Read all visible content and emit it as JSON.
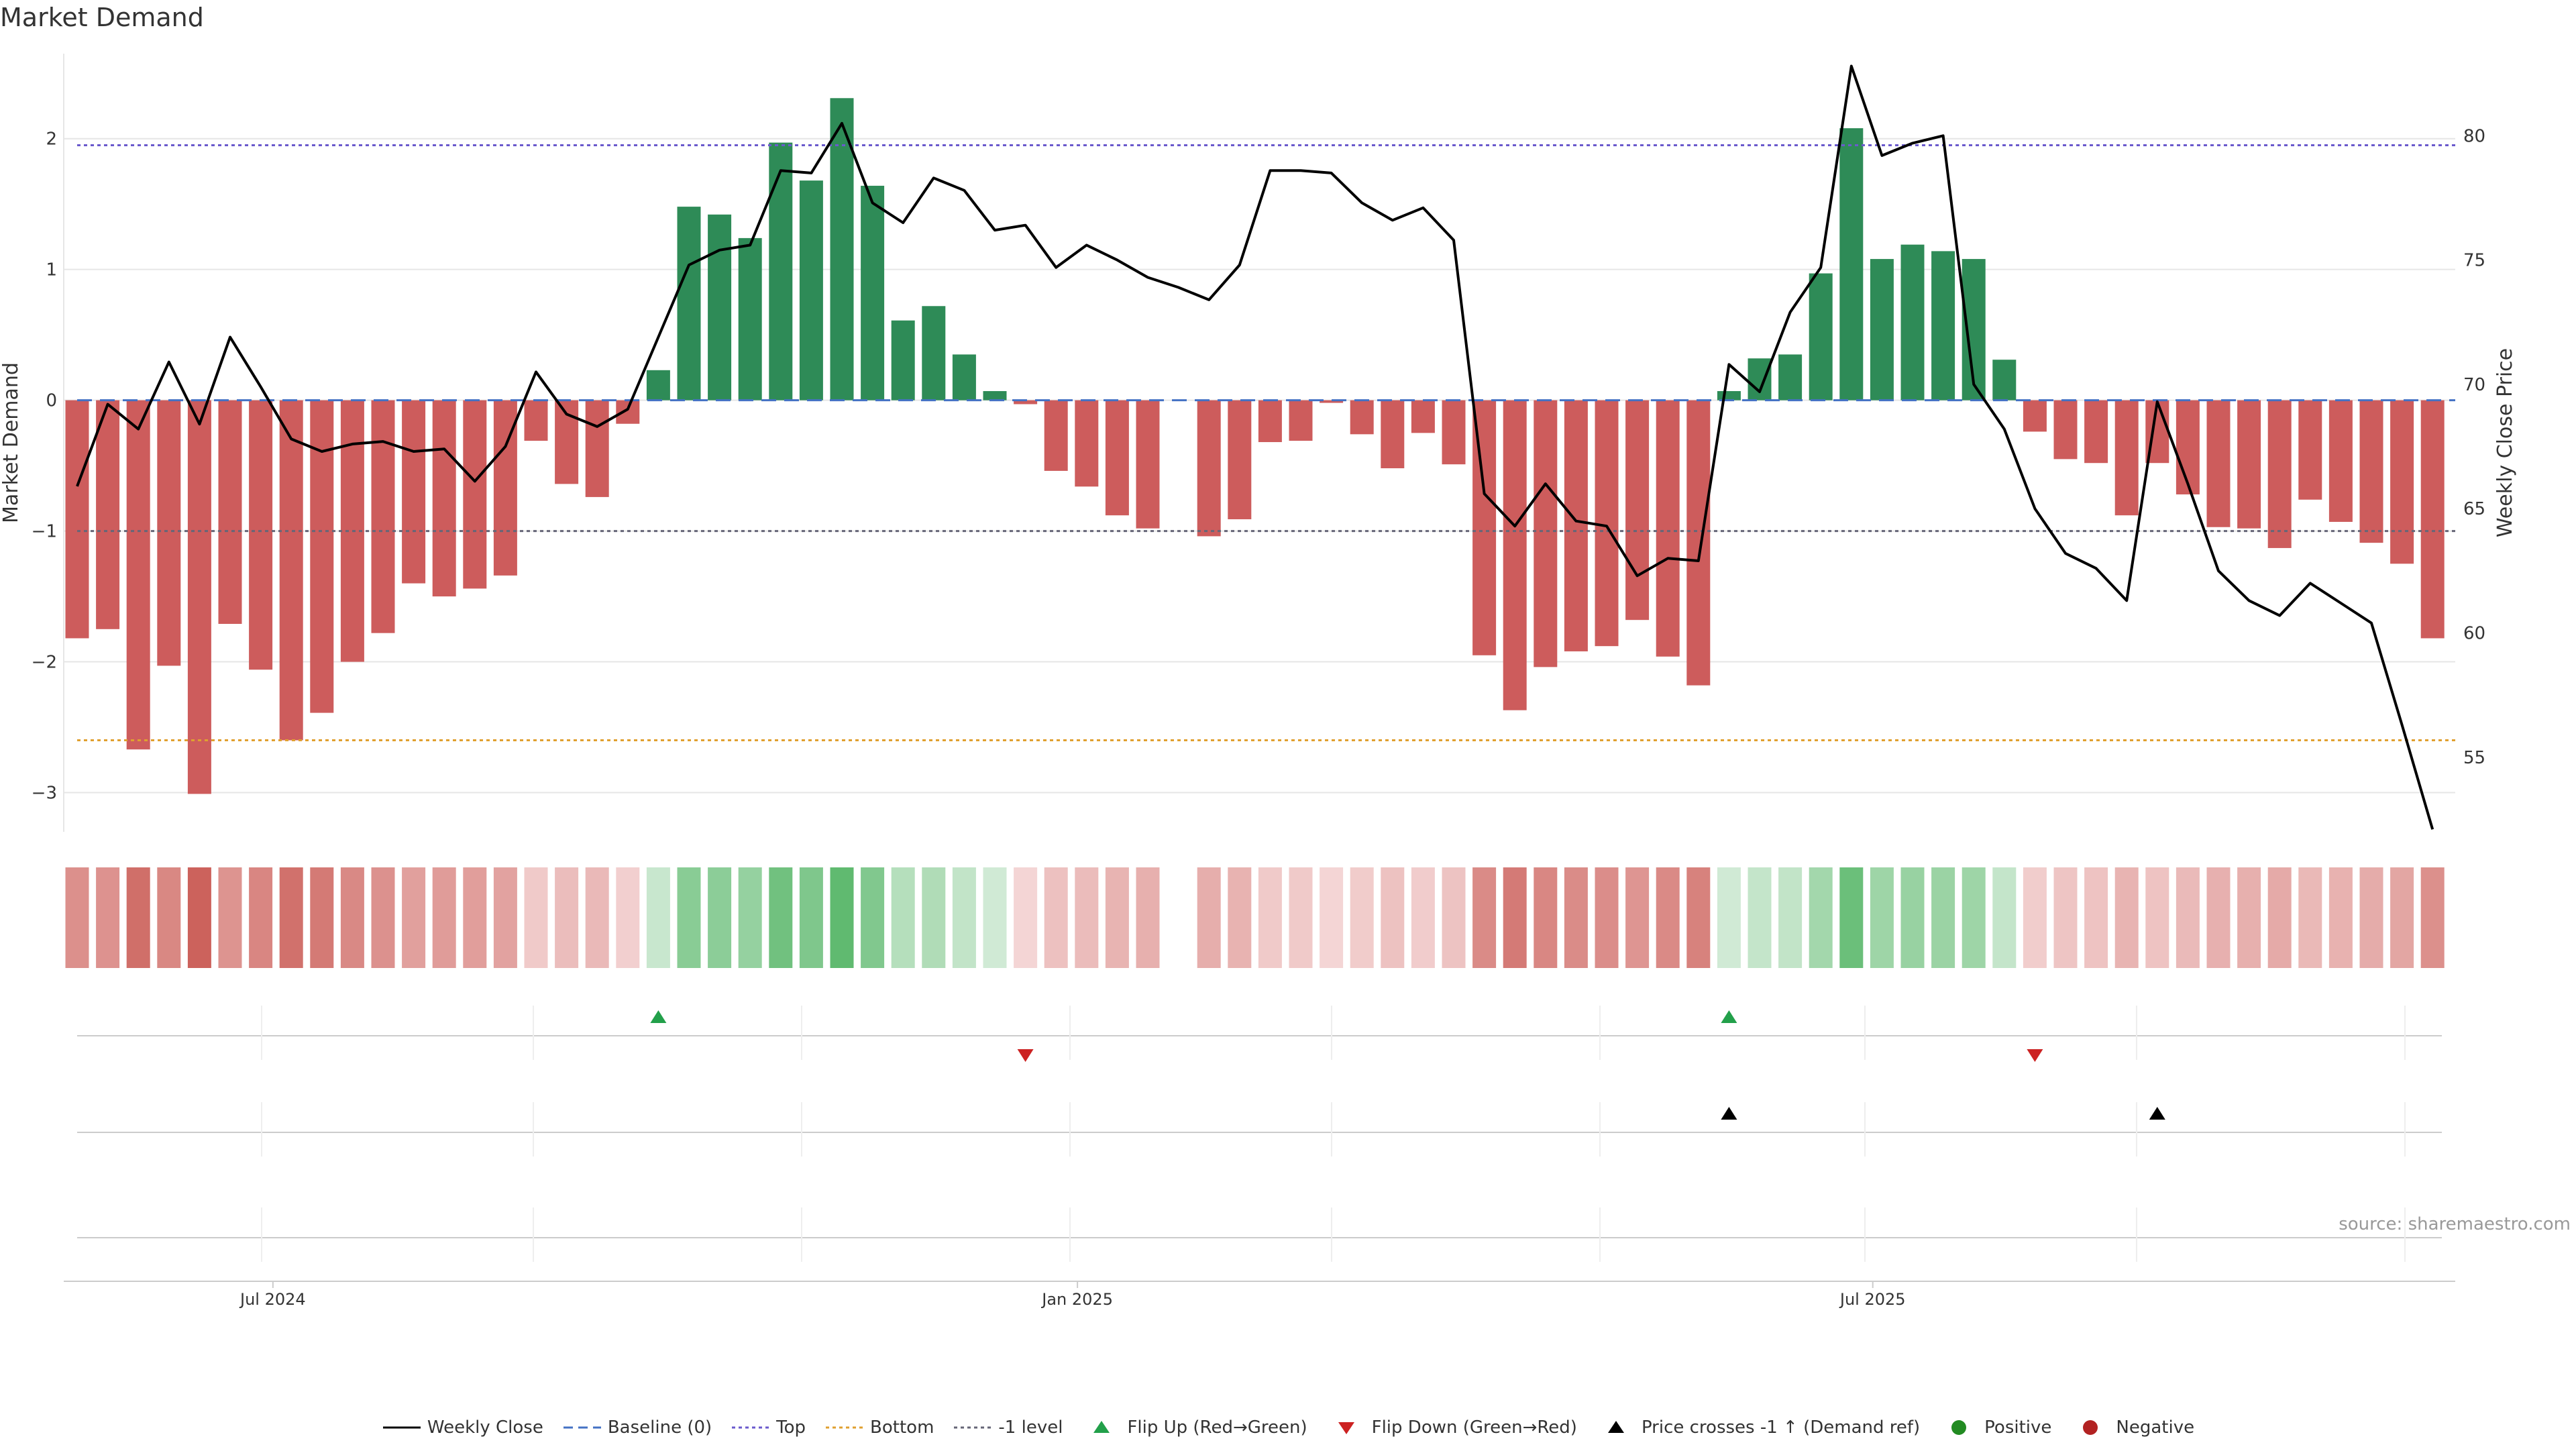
{
  "title": "Market Demand",
  "source": "source: sharemaestro.com",
  "colors": {
    "positive_bar": "#2e8b57",
    "negative_bar": "#cd5c5c",
    "price_line": "#000000",
    "baseline": "#4472c4",
    "top": "#6a5acd",
    "bottom": "#e0a030",
    "minus1": "#666677",
    "flip_up": "#22a04a",
    "flip_down": "#cc2222",
    "cross": "#000000",
    "grid": "#e6e6e6",
    "separator": "#cccccc"
  },
  "chart_data": {
    "type": "bar+line",
    "title": "Market Demand",
    "ylabel": "Market Demand",
    "y2label": "Weekly Close Price",
    "ylim": [
      -3.3,
      2.65
    ],
    "y2lim": [
      52.0,
      83.3
    ],
    "yticks": [
      2,
      1,
      0,
      -1,
      -2,
      -3
    ],
    "y2ticks": [
      80,
      75,
      70,
      65,
      60,
      55
    ],
    "xticks": [
      {
        "index": 6.4,
        "label": "Jul 2024"
      },
      {
        "index": 32.7,
        "label": "Jan 2025"
      },
      {
        "index": 58.7,
        "label": "Jul 2025"
      }
    ],
    "reference_lines": {
      "top": 1.95,
      "bottom": -2.6,
      "baseline": 0,
      "minus1": -1
    },
    "demand": [
      -1.82,
      -1.75,
      -2.67,
      -2.03,
      -3.01,
      -1.71,
      -2.06,
      -2.6,
      -2.39,
      -2.0,
      -1.78,
      -1.4,
      -1.5,
      -1.44,
      -1.34,
      -0.31,
      -0.64,
      -0.74,
      -0.18,
      0.23,
      1.48,
      1.42,
      1.24,
      1.97,
      1.68,
      2.31,
      1.64,
      0.61,
      0.72,
      0.35,
      0.07,
      -0.03,
      -0.54,
      -0.66,
      -0.88,
      -0.98,
      null,
      -1.04,
      -0.91,
      -0.32,
      -0.31,
      -0.02,
      -0.26,
      -0.52,
      -0.25,
      -0.49,
      -1.95,
      -2.37,
      -2.04,
      -1.92,
      -1.88,
      -1.68,
      -1.96,
      -2.18,
      0.07,
      0.32,
      0.35,
      0.97,
      2.08,
      1.08,
      1.19,
      1.14,
      1.08,
      0.31,
      -0.24,
      -0.45,
      -0.48,
      -0.88,
      -0.48,
      -0.72,
      -0.97,
      -0.98,
      -1.13,
      -0.76,
      -0.93,
      -1.09,
      -1.25,
      -1.82
    ],
    "weekly_close": [
      65.9,
      69.2,
      68.2,
      70.9,
      68.4,
      71.9,
      69.9,
      67.8,
      67.3,
      67.6,
      67.7,
      67.3,
      67.4,
      66.1,
      67.5,
      70.5,
      68.8,
      68.3,
      69.0,
      71.9,
      74.8,
      75.4,
      75.6,
      78.6,
      78.5,
      80.5,
      77.3,
      76.5,
      78.3,
      77.8,
      76.2,
      76.4,
      74.7,
      75.6,
      75.0,
      74.3,
      73.9,
      73.4,
      74.8,
      78.6,
      78.6,
      78.5,
      77.3,
      76.6,
      77.1,
      75.8,
      65.6,
      64.3,
      66.0,
      64.5,
      64.3,
      62.3,
      63.0,
      62.9,
      70.8,
      69.7,
      72.9,
      74.7,
      82.8,
      79.2,
      79.7,
      80.0,
      70.0,
      68.2,
      65.0,
      63.2,
      62.6,
      61.3,
      69.3,
      66.0,
      62.5,
      61.3,
      60.7,
      62.0,
      61.2,
      60.4,
      56.3,
      52.1
    ],
    "flip_up_indices": [
      19,
      54
    ],
    "flip_down_indices": [
      31,
      64
    ],
    "price_cross_indices": [
      54,
      68
    ]
  },
  "legend": [
    {
      "label": "Weekly Close",
      "kind": "solid-line",
      "color": "#000000"
    },
    {
      "label": "Baseline (0)",
      "kind": "dashed-line",
      "color": "#4472c4"
    },
    {
      "label": "Top",
      "kind": "dotted-line",
      "color": "#6a5acd"
    },
    {
      "label": "Bottom",
      "kind": "dotted-line",
      "color": "#e0a030"
    },
    {
      "label": "-1 level",
      "kind": "dotted-line",
      "color": "#666677"
    },
    {
      "label": "Flip Up (Red→Green)",
      "kind": "triangle-up",
      "color": "#22a04a"
    },
    {
      "label": "Flip Down (Green→Red)",
      "kind": "triangle-down",
      "color": "#cc2222"
    },
    {
      "label": "Price crosses -1 ↑ (Demand ref)",
      "kind": "triangle-up",
      "color": "#000000"
    },
    {
      "label": "Positive",
      "kind": "dot",
      "color": "#228b22"
    },
    {
      "label": "Negative",
      "kind": "dot",
      "color": "#b22222"
    }
  ]
}
